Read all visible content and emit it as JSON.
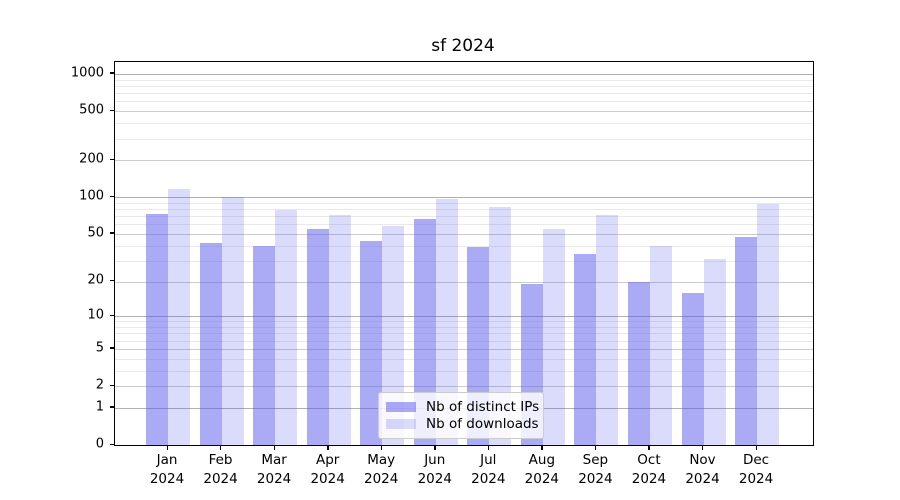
{
  "title": "sf 2024",
  "legend": {
    "items": [
      {
        "label": "Nb of distinct IPs",
        "color": "rgba(85,85,235,0.5)"
      },
      {
        "label": "Nb of downloads",
        "color": "rgba(85,85,235,0.21)"
      }
    ]
  },
  "axes": {
    "y_tick_labels": [
      "0",
      "1",
      "2",
      "5",
      "10",
      "20",
      "50",
      "100",
      "200",
      "500",
      "1000"
    ],
    "x_tick_line1": [
      "Jan",
      "Feb",
      "Mar",
      "Apr",
      "May",
      "Jun",
      "Jul",
      "Aug",
      "Sep",
      "Oct",
      "Nov",
      "Dec"
    ],
    "x_tick_line2": "2024"
  },
  "chart_data": {
    "type": "bar",
    "title": "sf 2024",
    "categories": [
      "Jan 2024",
      "Feb 2024",
      "Mar 2024",
      "Apr 2024",
      "May 2024",
      "Jun 2024",
      "Jul 2024",
      "Aug 2024",
      "Sep 2024",
      "Oct 2024",
      "Nov 2024",
      "Dec 2024"
    ],
    "series": [
      {
        "name": "Nb of distinct IPs",
        "color": "rgba(85,85,235,0.5)",
        "values": [
          73,
          42,
          40,
          55,
          44,
          66,
          39,
          19,
          34,
          20,
          16,
          47
        ]
      },
      {
        "name": "Nb of downloads",
        "color": "rgba(85,85,235,0.21)",
        "values": [
          116,
          100,
          78,
          71,
          58,
          97,
          83,
          55,
          71,
          40,
          31,
          88
        ]
      }
    ],
    "yscale": "log1p",
    "yticks": [
      0,
      1,
      2,
      5,
      10,
      20,
      50,
      100,
      200,
      500,
      1000
    ],
    "minor_yticks": [
      3,
      4,
      6,
      7,
      8,
      9,
      30,
      40,
      60,
      70,
      80,
      90,
      300,
      400,
      600,
      700,
      800,
      900
    ],
    "ylim": [
      0,
      1250
    ],
    "xlabel": "",
    "ylabel": "",
    "grid": true,
    "legend_position": "inside-bottom-center"
  }
}
